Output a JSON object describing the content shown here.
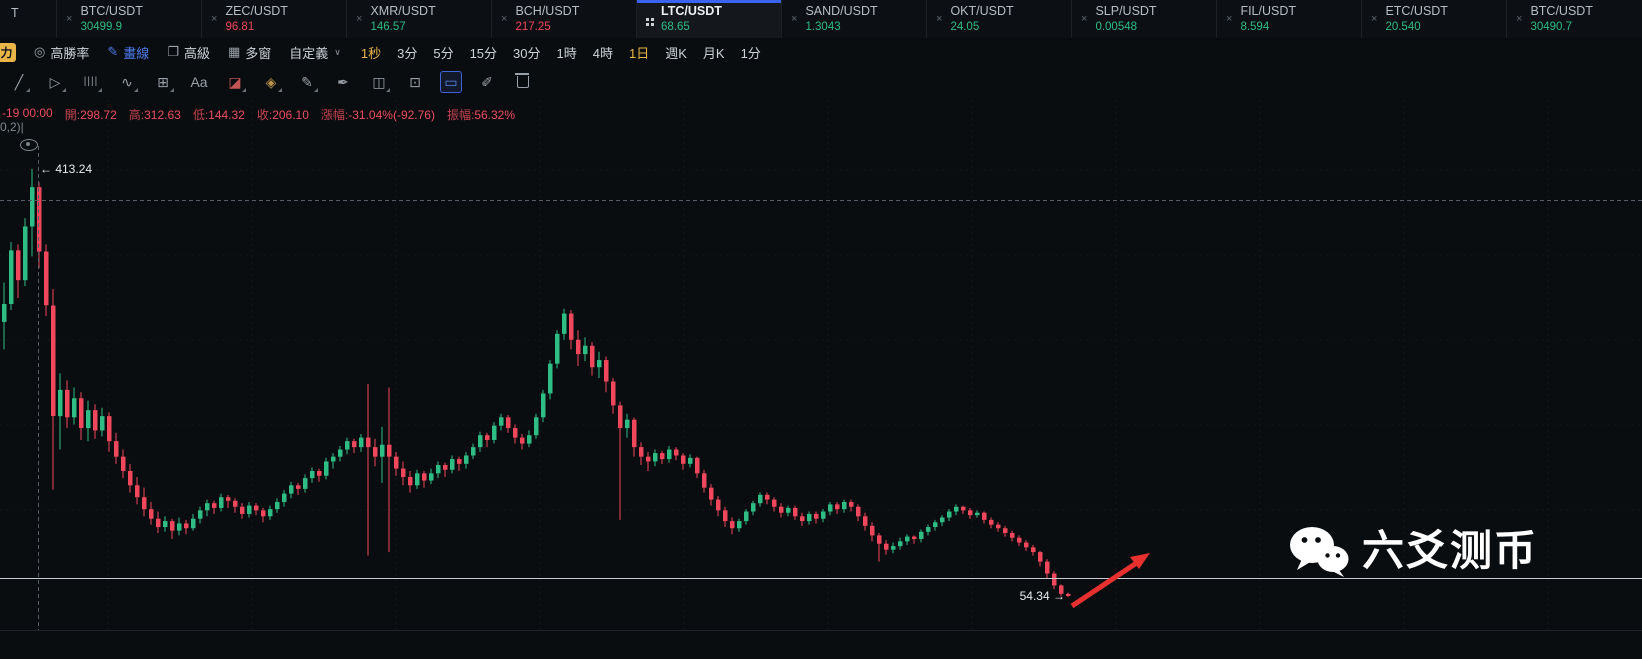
{
  "colors": {
    "up": "#2ebd85",
    "down": "#f0475c",
    "accent_blue": "#4e7cf0",
    "accent_yellow": "#e9b546",
    "ohlc_red": "#ee4d5f",
    "arrow_red": "#e8312f",
    "support_line": "#c7ccd2",
    "crosshair": "#565d66"
  },
  "tabs": {
    "partial_left_label": "T",
    "close_glyph": "×",
    "items": [
      {
        "pair": "BTC/USDT",
        "price": "30499.9",
        "direction": "up"
      },
      {
        "pair": "ZEC/USDT",
        "price": "96.81",
        "direction": "down"
      },
      {
        "pair": "XMR/USDT",
        "price": "146.57",
        "direction": "up"
      },
      {
        "pair": "BCH/USDT",
        "price": "217.25",
        "direction": "down"
      },
      {
        "pair": "LTC/USDT",
        "price": "68.65",
        "direction": "up",
        "active": true
      },
      {
        "pair": "SAND/USDT",
        "price": "1.3043",
        "direction": "up"
      },
      {
        "pair": "OKT/USDT",
        "price": "24.05",
        "direction": "up"
      },
      {
        "pair": "SLP/USDT",
        "price": "0.00548",
        "direction": "up"
      },
      {
        "pair": "FIL/USDT",
        "price": "8.594",
        "direction": "up"
      },
      {
        "pair": "ETC/USDT",
        "price": "20.540",
        "direction": "up"
      },
      {
        "pair": "BTC/USDT",
        "price": "30490.7",
        "direction": "up"
      }
    ]
  },
  "toolbar": {
    "power_label": "力",
    "win_rate_label": "高勝率",
    "draw_label": "畫線",
    "advanced_label": "高級",
    "multi_window_label": "多窗",
    "custom_label": "自定義",
    "icons": {
      "win_rate": "◎",
      "draw": "✎",
      "advanced": "❐",
      "multi_window": "▦",
      "caret": "∨"
    },
    "timeframes": [
      {
        "label": "1秒",
        "highlight": true
      },
      {
        "label": "3分"
      },
      {
        "label": "5分"
      },
      {
        "label": "15分"
      },
      {
        "label": "30分"
      },
      {
        "label": "1時"
      },
      {
        "label": "4時"
      },
      {
        "label": "1日",
        "highlight": true
      },
      {
        "label": "週K"
      },
      {
        "label": "月K"
      },
      {
        "label": "1分"
      }
    ]
  },
  "draw_toolbar": {
    "icons": [
      {
        "name": "trend-line-icon",
        "glyph": "╱",
        "caret": true
      },
      {
        "name": "cursor-tool-icon",
        "glyph": "▷",
        "caret": true
      },
      {
        "name": "fib-retracement-icon",
        "glyph": "||||",
        "caret": true
      },
      {
        "name": "wave-pattern-icon",
        "glyph": "∿",
        "caret": true
      },
      {
        "name": "grid-pattern-icon",
        "glyph": "⊞",
        "caret": true
      },
      {
        "name": "text-tool-icon",
        "glyph": "Aa"
      },
      {
        "name": "eraser-tool-icon",
        "glyph": "◪",
        "tint": "#c25454",
        "caret": true
      },
      {
        "name": "highlighter-tool-icon",
        "glyph": "◈",
        "tint": "#b8934a",
        "caret": true
      },
      {
        "name": "pencil-tool-icon",
        "glyph": "✎",
        "caret": true
      },
      {
        "name": "ink-pen-tool-icon",
        "glyph": "✒"
      },
      {
        "name": "pattern-boxes-icon",
        "glyph": "◫",
        "caret": true
      },
      {
        "name": "screenshot-icon",
        "glyph": "⊡"
      },
      {
        "name": "selection-box-icon",
        "glyph": "▭",
        "active": true
      },
      {
        "name": "note-edit-icon",
        "glyph": "✐"
      },
      {
        "name": "trash-icon",
        "css": "trash"
      }
    ]
  },
  "ohlc": {
    "date": "-19 00:00",
    "fields": [
      {
        "key": "open",
        "label": "開",
        "value": "298.72"
      },
      {
        "key": "high",
        "label": "高",
        "value": "312.63"
      },
      {
        "key": "low",
        "label": "低",
        "value": "144.32"
      },
      {
        "key": "close",
        "label": "收",
        "value": "206.10"
      },
      {
        "key": "change",
        "label": "漲幅",
        "value": "-31.04%(-92.76)"
      },
      {
        "key": "amplitude",
        "label": "振幅",
        "value": "56.32%"
      }
    ]
  },
  "indicator_fragment": "0,2)|",
  "annotations": {
    "high": "← 413.24",
    "low": "54.34 →"
  },
  "watermark": {
    "text": "六爻测币"
  },
  "chart_data": {
    "type": "candlestick",
    "pair": "LTC/USDT",
    "interval": "1日",
    "visible_high": 413.24,
    "visible_low": 54.34,
    "support_line_price": 70,
    "legend_position": "none",
    "grid": true,
    "candles": [
      [
        285,
        318,
        262,
        300
      ],
      [
        300,
        352,
        295,
        345
      ],
      [
        345,
        350,
        305,
        320
      ],
      [
        320,
        372,
        315,
        365
      ],
      [
        365,
        413.24,
        340,
        398
      ],
      [
        398,
        402,
        330,
        344
      ],
      [
        344,
        350,
        290,
        299
      ],
      [
        298.72,
        312.63,
        144.32,
        206.1
      ],
      [
        206,
        242,
        178,
        228
      ],
      [
        228,
        236,
        196,
        205
      ],
      [
        205,
        230,
        199,
        221
      ],
      [
        221,
        226,
        186,
        196
      ],
      [
        196,
        219,
        185,
        211
      ],
      [
        211,
        216,
        187,
        194
      ],
      [
        194,
        213,
        189,
        206
      ],
      [
        206,
        209,
        176,
        185
      ],
      [
        185,
        192,
        166,
        172
      ],
      [
        172,
        178,
        154,
        160
      ],
      [
        160,
        166,
        142,
        148
      ],
      [
        148,
        155,
        132,
        138
      ],
      [
        138,
        146,
        122,
        128
      ],
      [
        128,
        134,
        115,
        120
      ],
      [
        120,
        126,
        108,
        113
      ],
      [
        113,
        122,
        109,
        118
      ],
      [
        118,
        120,
        103,
        110
      ],
      [
        110,
        121,
        106,
        116
      ],
      [
        116,
        119,
        107,
        112
      ],
      [
        112,
        124,
        110,
        120
      ],
      [
        120,
        130,
        116,
        127
      ],
      [
        127,
        136,
        122,
        133
      ],
      [
        133,
        135,
        124,
        129
      ],
      [
        129,
        141,
        126,
        138
      ],
      [
        138,
        140,
        129,
        135
      ],
      [
        135,
        137,
        125,
        130
      ],
      [
        130,
        133,
        120,
        124
      ],
      [
        124,
        134,
        121,
        131
      ],
      [
        131,
        133,
        123,
        127
      ],
      [
        127,
        129,
        117,
        122
      ],
      [
        122,
        131,
        119,
        128
      ],
      [
        128,
        137,
        125,
        134
      ],
      [
        134,
        144,
        130,
        141
      ],
      [
        141,
        151,
        137,
        148
      ],
      [
        148,
        150,
        140,
        145
      ],
      [
        145,
        157,
        142,
        154
      ],
      [
        154,
        163,
        150,
        160
      ],
      [
        160,
        162,
        151,
        156
      ],
      [
        156,
        171,
        153,
        168
      ],
      [
        168,
        175,
        162,
        172
      ],
      [
        172,
        181,
        168,
        178
      ],
      [
        178,
        188,
        174,
        185
      ],
      [
        185,
        187,
        175,
        180
      ],
      [
        180,
        191,
        176,
        188
      ],
      [
        188,
        233,
        89,
        180
      ],
      [
        180,
        187,
        164,
        172
      ],
      [
        172,
        197,
        150,
        182
      ],
      [
        182,
        230,
        92,
        172
      ],
      [
        172,
        176,
        156,
        162
      ],
      [
        162,
        168,
        148,
        155
      ],
      [
        155,
        160,
        142,
        148
      ],
      [
        148,
        161,
        145,
        158
      ],
      [
        158,
        160,
        146,
        152
      ],
      [
        152,
        162,
        149,
        158
      ],
      [
        158,
        168,
        154,
        165
      ],
      [
        165,
        167,
        155,
        161
      ],
      [
        161,
        173,
        158,
        170
      ],
      [
        170,
        172,
        160,
        166
      ],
      [
        166,
        176,
        162,
        173
      ],
      [
        173,
        183,
        170,
        180
      ],
      [
        180,
        193,
        176,
        190
      ],
      [
        190,
        192,
        180,
        186
      ],
      [
        186,
        201,
        183,
        198
      ],
      [
        198,
        208,
        194,
        205
      ],
      [
        205,
        207,
        192,
        196
      ],
      [
        196,
        199,
        183,
        188
      ],
      [
        188,
        191,
        178,
        183
      ],
      [
        183,
        194,
        180,
        190
      ],
      [
        190,
        208,
        187,
        205
      ],
      [
        205,
        228,
        201,
        225
      ],
      [
        225,
        253,
        220,
        250
      ],
      [
        250,
        278,
        246,
        275
      ],
      [
        275,
        296,
        270,
        292
      ],
      [
        292,
        295,
        262,
        270
      ],
      [
        270,
        278,
        248,
        258
      ],
      [
        258,
        272,
        252,
        265
      ],
      [
        265,
        268,
        240,
        247
      ],
      [
        247,
        260,
        238,
        253
      ],
      [
        253,
        256,
        226,
        235
      ],
      [
        235,
        238,
        208,
        215
      ],
      [
        215,
        218,
        119,
        196
      ],
      [
        196,
        208,
        188,
        203
      ],
      [
        203,
        205,
        172,
        180
      ],
      [
        180,
        184,
        165,
        172
      ],
      [
        172,
        176,
        160,
        168
      ],
      [
        168,
        178,
        164,
        175
      ],
      [
        175,
        177,
        166,
        170
      ],
      [
        170,
        181,
        167,
        178
      ],
      [
        178,
        180,
        169,
        173
      ],
      [
        173,
        175,
        161,
        166
      ],
      [
        166,
        174,
        163,
        171
      ],
      [
        171,
        172,
        154,
        158
      ],
      [
        158,
        161,
        142,
        146
      ],
      [
        146,
        149,
        131,
        136
      ],
      [
        136,
        139,
        122,
        127
      ],
      [
        127,
        130,
        113,
        118
      ],
      [
        118,
        121,
        107,
        112
      ],
      [
        112,
        120,
        109,
        118
      ],
      [
        118,
        128,
        115,
        126
      ],
      [
        126,
        135,
        123,
        133
      ],
      [
        133,
        142,
        130,
        140
      ],
      [
        140,
        142,
        132,
        136
      ],
      [
        136,
        138,
        126,
        130
      ],
      [
        130,
        133,
        121,
        125
      ],
      [
        125,
        131,
        122,
        129
      ],
      [
        129,
        131,
        119,
        122
      ],
      [
        122,
        125,
        114,
        118
      ],
      [
        118,
        126,
        115,
        124
      ],
      [
        124,
        126,
        116,
        120
      ],
      [
        120,
        128,
        117,
        126
      ],
      [
        126,
        134,
        123,
        132
      ],
      [
        132,
        134,
        124,
        128
      ],
      [
        128,
        136,
        125,
        134
      ],
      [
        134,
        136,
        126,
        130
      ],
      [
        130,
        132,
        118,
        122
      ],
      [
        122,
        125,
        110,
        114
      ],
      [
        114,
        117,
        101,
        106
      ],
      [
        106,
        108,
        84,
        99
      ],
      [
        99,
        102,
        90,
        94
      ],
      [
        94,
        100,
        91,
        97
      ],
      [
        97,
        104,
        94,
        101
      ],
      [
        101,
        107,
        98,
        105
      ],
      [
        105,
        106,
        99,
        103
      ],
      [
        103,
        111,
        100,
        109
      ],
      [
        109,
        115,
        106,
        113
      ],
      [
        113,
        119,
        110,
        117
      ],
      [
        117,
        123,
        114,
        121
      ],
      [
        121,
        128,
        118,
        126
      ],
      [
        126,
        132,
        123,
        130
      ],
      [
        130,
        131,
        124,
        127
      ],
      [
        127,
        129,
        120,
        123
      ],
      [
        123,
        127,
        121,
        125
      ],
      [
        125,
        126,
        116,
        119
      ],
      [
        119,
        121,
        112,
        115
      ],
      [
        115,
        117,
        109,
        112
      ],
      [
        112,
        114,
        105,
        108
      ],
      [
        108,
        110,
        101,
        104
      ],
      [
        104,
        106,
        97,
        100
      ],
      [
        100,
        102,
        93,
        96
      ],
      [
        96,
        98,
        89,
        92
      ],
      [
        92,
        93,
        80,
        84
      ],
      [
        84,
        86,
        70,
        74
      ],
      [
        74,
        76,
        61,
        64
      ],
      [
        64,
        65,
        55,
        57
      ],
      [
        57,
        58,
        54.34,
        55.2
      ]
    ]
  }
}
